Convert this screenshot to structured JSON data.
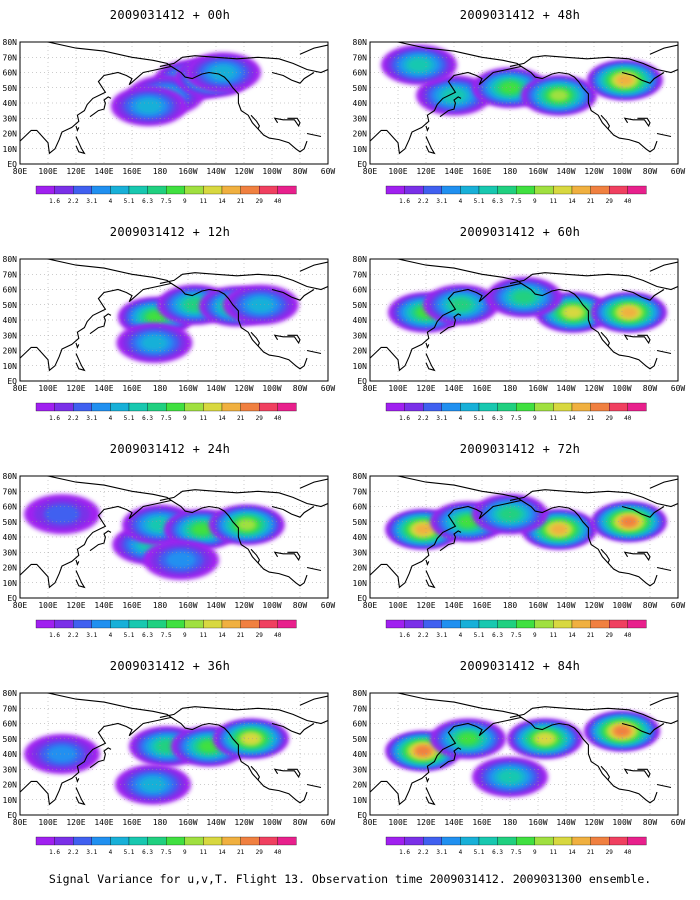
{
  "caption": "Signal Variance for u,v,T. Flight 13. Observation time 2009031412. 2009031300 ensemble.",
  "colorbar": {
    "labels": [
      "1.6",
      "2.2",
      "3.1",
      "4",
      "5.1",
      "6.3",
      "7.5",
      "9",
      "11",
      "14",
      "21",
      "29",
      "40"
    ],
    "colors": [
      "#a020f0",
      "#7a30e8",
      "#4060f0",
      "#2090f0",
      "#18b0d8",
      "#18c8b0",
      "#20d080",
      "#40e040",
      "#a0e040",
      "#d8d840",
      "#f0b040",
      "#f08040",
      "#f04060",
      "#e8208c"
    ]
  },
  "axes": {
    "x_ticks": [
      "80E",
      "100E",
      "120E",
      "140E",
      "160E",
      "180",
      "160W",
      "140W",
      "120W",
      "100W",
      "80W",
      "60W"
    ],
    "y_ticks": [
      "EQ",
      "10N",
      "20N",
      "30N",
      "40N",
      "50N",
      "60N",
      "70N",
      "80N"
    ]
  },
  "chart_data": [
    {
      "type": "heatmap",
      "title": "2009031412 + 00h",
      "lead_hours": 0,
      "blobs": [
        {
          "lon": 203,
          "lat": 55,
          "level": 6
        },
        {
          "lon": 184,
          "lat": 45,
          "level": 4
        },
        {
          "lon": 172,
          "lat": 38,
          "level": 4
        },
        {
          "lon": 218,
          "lat": 57,
          "level": 8
        },
        {
          "lon": 225,
          "lat": 60,
          "level": 4
        }
      ]
    },
    {
      "type": "heatmap",
      "title": "2009031412 + 12h",
      "lead_hours": 12,
      "blobs": [
        {
          "lon": 177,
          "lat": 42,
          "level": 7
        },
        {
          "lon": 176,
          "lat": 25,
          "level": 4
        },
        {
          "lon": 205,
          "lat": 50,
          "level": 6
        },
        {
          "lon": 235,
          "lat": 49,
          "level": 7
        },
        {
          "lon": 252,
          "lat": 50,
          "level": 4
        }
      ]
    },
    {
      "type": "heatmap",
      "title": "2009031412 + 24h",
      "lead_hours": 24,
      "blobs": [
        {
          "lon": 173,
          "lat": 35,
          "level": 5
        },
        {
          "lon": 180,
          "lat": 48,
          "level": 5
        },
        {
          "lon": 210,
          "lat": 45,
          "level": 7
        },
        {
          "lon": 242,
          "lat": 48,
          "level": 8
        },
        {
          "lon": 195,
          "lat": 25,
          "level": 3
        },
        {
          "lon": 110,
          "lat": 55,
          "level": 2
        }
      ]
    },
    {
      "type": "heatmap",
      "title": "2009031412 + 36h",
      "lead_hours": 36,
      "blobs": [
        {
          "lon": 185,
          "lat": 45,
          "level": 6
        },
        {
          "lon": 215,
          "lat": 45,
          "level": 7
        },
        {
          "lon": 245,
          "lat": 50,
          "level": 9
        },
        {
          "lon": 175,
          "lat": 20,
          "level": 4
        },
        {
          "lon": 110,
          "lat": 40,
          "level": 3
        }
      ]
    },
    {
      "type": "heatmap",
      "title": "2009031412 + 48h",
      "lead_hours": 48,
      "blobs": [
        {
          "lon": 140,
          "lat": 45,
          "level": 5
        },
        {
          "lon": 180,
          "lat": 50,
          "level": 7
        },
        {
          "lon": 215,
          "lat": 45,
          "level": 8
        },
        {
          "lon": 262,
          "lat": 55,
          "level": 10
        },
        {
          "lon": 115,
          "lat": 65,
          "level": 5
        }
      ]
    },
    {
      "type": "heatmap",
      "title": "2009031412 + 60h",
      "lead_hours": 60,
      "blobs": [
        {
          "lon": 120,
          "lat": 45,
          "level": 7
        },
        {
          "lon": 145,
          "lat": 50,
          "level": 6
        },
        {
          "lon": 225,
          "lat": 45,
          "level": 9
        },
        {
          "lon": 265,
          "lat": 45,
          "level": 10
        },
        {
          "lon": 190,
          "lat": 55,
          "level": 6
        }
      ]
    },
    {
      "type": "heatmap",
      "title": "2009031412 + 72h",
      "lead_hours": 72,
      "blobs": [
        {
          "lon": 118,
          "lat": 45,
          "level": 10
        },
        {
          "lon": 150,
          "lat": 50,
          "level": 7
        },
        {
          "lon": 215,
          "lat": 45,
          "level": 10
        },
        {
          "lon": 265,
          "lat": 50,
          "level": 11
        },
        {
          "lon": 180,
          "lat": 55,
          "level": 6
        }
      ]
    },
    {
      "type": "heatmap",
      "title": "2009031412 + 84h",
      "lead_hours": 84,
      "blobs": [
        {
          "lon": 118,
          "lat": 42,
          "level": 11
        },
        {
          "lon": 150,
          "lat": 50,
          "level": 7
        },
        {
          "lon": 205,
          "lat": 50,
          "level": 9
        },
        {
          "lon": 260,
          "lat": 55,
          "level": 11
        },
        {
          "lon": 180,
          "lat": 25,
          "level": 5
        }
      ]
    }
  ]
}
